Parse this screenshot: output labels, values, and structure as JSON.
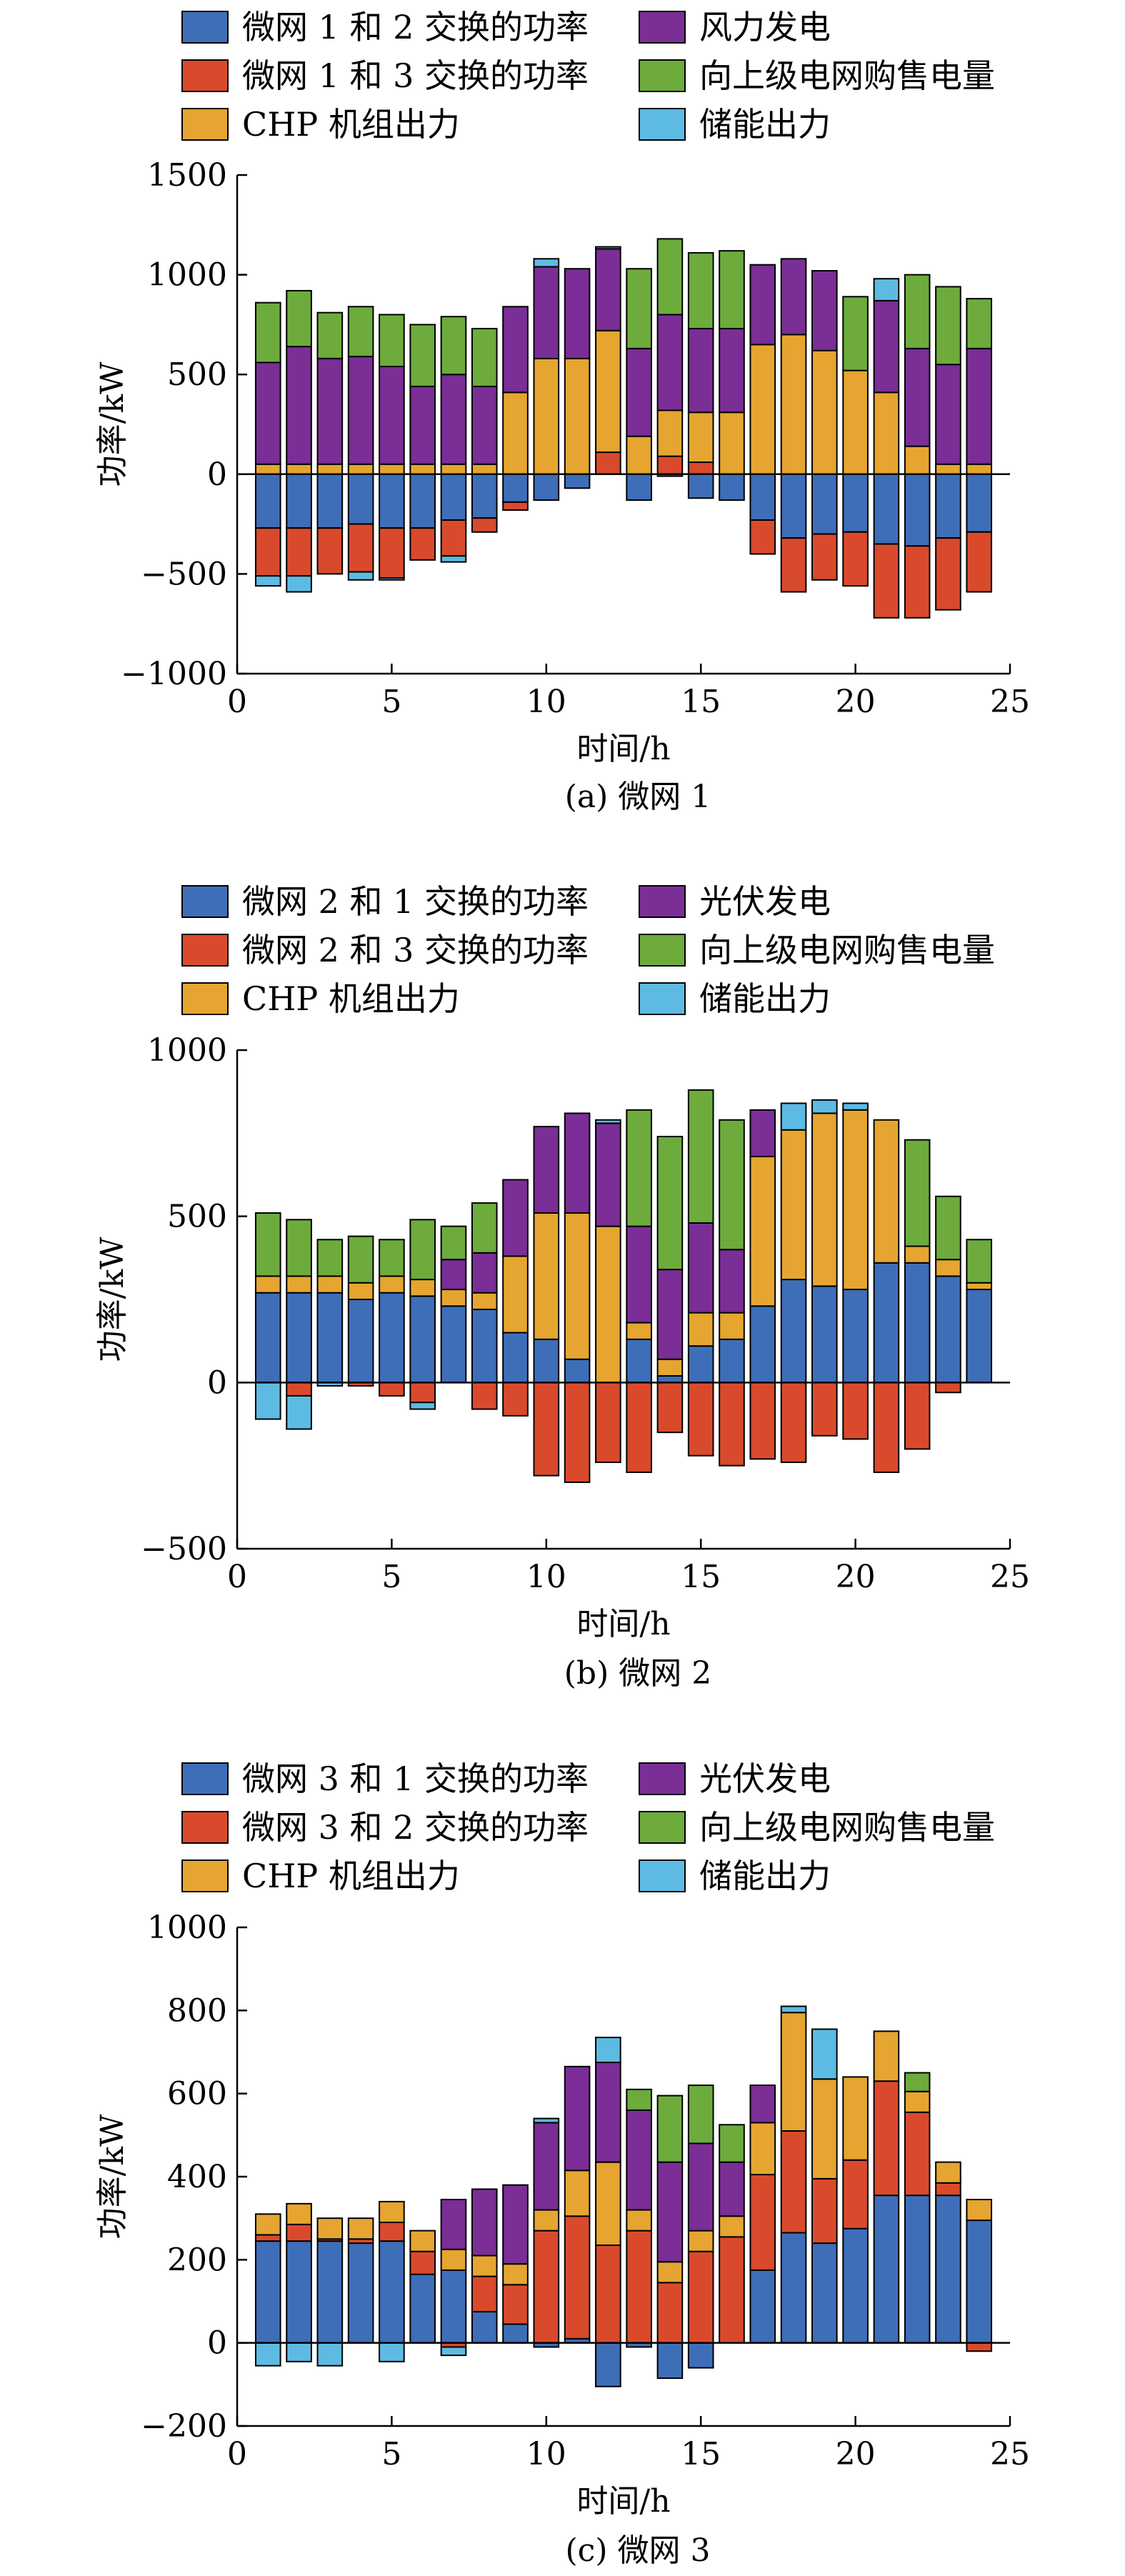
{
  "colors": {
    "blue": "#3E6EB8",
    "red": "#D94A2C",
    "orange": "#E5A530",
    "purple": "#7A2E96",
    "green": "#6CAB3C",
    "cyan": "#5DBBE3"
  },
  "chart_data": [
    {
      "type": "bar",
      "stacked": true,
      "caption": "(a) 微网 1",
      "xlabel": "时间/h",
      "ylabel": "功率/kW",
      "ylim": [
        -1000,
        1500
      ],
      "yticks": [
        "1500",
        "1000",
        "500",
        "0",
        "−500",
        "−1000"
      ],
      "ytick_values": [
        1500,
        1000,
        500,
        0,
        -500,
        -1000
      ],
      "xlim": [
        0,
        25
      ],
      "xticks": [
        "0",
        "5",
        "10",
        "15",
        "20",
        "25"
      ],
      "xtick_values": [
        0,
        5,
        10,
        15,
        20,
        25
      ],
      "x": [
        1,
        2,
        3,
        4,
        5,
        6,
        7,
        8,
        9,
        10,
        11,
        12,
        13,
        14,
        15,
        16,
        17,
        18,
        19,
        20,
        21,
        22,
        23,
        24
      ],
      "legend": [
        "微网 1 和 2 交换的功率",
        "风力发电",
        "微网 1 和 3 交换的功率",
        "向上级电网购售电量",
        "CHP 机组出力",
        "储能出力"
      ],
      "series": [
        {
          "name": "微网 1 和 2 交换的功率",
          "color_key": "blue",
          "values": [
            -270,
            -270,
            -270,
            -250,
            -270,
            -270,
            -230,
            -220,
            -140,
            -130,
            -70,
            0,
            -130,
            -10,
            -120,
            -130,
            -230,
            -320,
            -300,
            -290,
            -350,
            -360,
            -320,
            -290
          ]
        },
        {
          "name": "微网 1 和 3 交换的功率",
          "color_key": "red",
          "values": [
            -240,
            -240,
            -230,
            -240,
            -250,
            -160,
            -180,
            -70,
            -40,
            0,
            0,
            110,
            0,
            90,
            60,
            0,
            -170,
            -270,
            -230,
            -270,
            -370,
            -360,
            -360,
            -300
          ]
        },
        {
          "name": "CHP 机组出力",
          "color_key": "orange",
          "values": [
            50,
            50,
            50,
            50,
            50,
            50,
            50,
            50,
            410,
            580,
            580,
            610,
            190,
            230,
            250,
            310,
            650,
            700,
            620,
            520,
            410,
            140,
            50,
            50
          ]
        },
        {
          "name": "风力发电",
          "color_key": "purple",
          "values": [
            510,
            590,
            530,
            540,
            490,
            390,
            450,
            390,
            430,
            460,
            450,
            410,
            440,
            480,
            420,
            420,
            400,
            380,
            400,
            0,
            460,
            490,
            500,
            580
          ]
        },
        {
          "name": "向上级电网购售电量",
          "color_key": "green",
          "values": [
            300,
            280,
            230,
            250,
            260,
            310,
            290,
            290,
            0,
            0,
            0,
            0,
            400,
            380,
            380,
            390,
            0,
            0,
            0,
            370,
            0,
            370,
            390,
            250
          ]
        },
        {
          "name": "储能出力",
          "color_key": "cyan",
          "values": [
            -50,
            -80,
            0,
            -40,
            -10,
            0,
            -30,
            0,
            0,
            40,
            0,
            10,
            0,
            0,
            0,
            0,
            0,
            0,
            0,
            0,
            110,
            0,
            0,
            0
          ]
        }
      ]
    },
    {
      "type": "bar",
      "stacked": true,
      "caption": "(b) 微网 2",
      "xlabel": "时间/h",
      "ylabel": "功率/kW",
      "ylim": [
        -500,
        1000
      ],
      "yticks": [
        "1000",
        "500",
        "0",
        "−500"
      ],
      "ytick_values": [
        1000,
        500,
        0,
        -500
      ],
      "xlim": [
        0,
        25
      ],
      "xticks": [
        "0",
        "5",
        "10",
        "15",
        "20",
        "25"
      ],
      "xtick_values": [
        0,
        5,
        10,
        15,
        20,
        25
      ],
      "x": [
        1,
        2,
        3,
        4,
        5,
        6,
        7,
        8,
        9,
        10,
        11,
        12,
        13,
        14,
        15,
        16,
        17,
        18,
        19,
        20,
        21,
        22,
        23,
        24
      ],
      "legend": [
        "微网 2 和 1 交换的功率",
        "光伏发电",
        "微网 2 和 3 交换的功率",
        "向上级电网购售电量",
        "CHP 机组出力",
        "储能出力"
      ],
      "series": [
        {
          "name": "微网 2 和 1 交换的功率",
          "color_key": "blue",
          "values": [
            270,
            270,
            270,
            250,
            270,
            260,
            230,
            220,
            150,
            130,
            70,
            0,
            130,
            20,
            110,
            130,
            230,
            310,
            290,
            280,
            360,
            360,
            320,
            280
          ]
        },
        {
          "name": "微网 2 和 3 交换的功率",
          "color_key": "red",
          "values": [
            0,
            -40,
            0,
            -10,
            -40,
            -60,
            0,
            -80,
            -100,
            -280,
            -300,
            -240,
            -270,
            -150,
            -220,
            -250,
            -230,
            -240,
            -160,
            -170,
            -270,
            -200,
            -30,
            0
          ]
        },
        {
          "name": "CHP 机组出力",
          "color_key": "orange",
          "values": [
            50,
            50,
            50,
            50,
            50,
            50,
            50,
            50,
            230,
            380,
            440,
            470,
            50,
            50,
            100,
            80,
            450,
            450,
            520,
            540,
            430,
            50,
            50,
            20
          ]
        },
        {
          "name": "光伏发电",
          "color_key": "purple",
          "values": [
            0,
            0,
            0,
            0,
            0,
            0,
            90,
            120,
            230,
            260,
            300,
            310,
            290,
            270,
            270,
            190,
            140,
            0,
            0,
            0,
            0,
            0,
            0,
            0
          ]
        },
        {
          "name": "向上级电网购售电量",
          "color_key": "green",
          "values": [
            190,
            170,
            110,
            140,
            110,
            180,
            100,
            150,
            0,
            0,
            0,
            0,
            350,
            400,
            400,
            390,
            0,
            0,
            0,
            0,
            0,
            320,
            190,
            130
          ]
        },
        {
          "name": "储能出力",
          "color_key": "cyan",
          "values": [
            -110,
            -100,
            -10,
            0,
            0,
            -20,
            0,
            0,
            0,
            0,
            0,
            10,
            0,
            0,
            0,
            0,
            0,
            80,
            40,
            20,
            0,
            0,
            0,
            0
          ]
        }
      ]
    },
    {
      "type": "bar",
      "stacked": true,
      "caption": "(c) 微网 3",
      "xlabel": "时间/h",
      "ylabel": "功率/kW",
      "ylim": [
        -200,
        1000
      ],
      "yticks": [
        "1000",
        "800",
        "600",
        "400",
        "200",
        "0",
        "−200"
      ],
      "ytick_values": [
        1000,
        800,
        600,
        400,
        200,
        0,
        -200
      ],
      "xlim": [
        0,
        25
      ],
      "xticks": [
        "0",
        "5",
        "10",
        "15",
        "20",
        "25"
      ],
      "xtick_values": [
        0,
        5,
        10,
        15,
        20,
        25
      ],
      "x": [
        1,
        2,
        3,
        4,
        5,
        6,
        7,
        8,
        9,
        10,
        11,
        12,
        13,
        14,
        15,
        16,
        17,
        18,
        19,
        20,
        21,
        22,
        23,
        24
      ],
      "legend": [
        "微网 3 和 1 交换的功率",
        "光伏发电",
        "微网 3 和 2 交换的功率",
        "向上级电网购售电量",
        "CHP 机组出力",
        "储能出力"
      ],
      "series": [
        {
          "name": "微网 3 和 1 交换的功率",
          "color_key": "blue",
          "values": [
            245,
            245,
            245,
            240,
            245,
            165,
            175,
            75,
            45,
            -10,
            10,
            -105,
            -10,
            -85,
            -60,
            0,
            175,
            265,
            240,
            275,
            355,
            355,
            355,
            295
          ]
        },
        {
          "name": "微网 3 和 2 交换的功率",
          "color_key": "red",
          "values": [
            15,
            40,
            5,
            10,
            45,
            55,
            -10,
            85,
            95,
            270,
            295,
            235,
            270,
            145,
            220,
            255,
            230,
            245,
            155,
            165,
            275,
            200,
            30,
            -20
          ]
        },
        {
          "name": "CHP 机组出力",
          "color_key": "orange",
          "values": [
            50,
            50,
            50,
            50,
            50,
            50,
            50,
            50,
            50,
            50,
            110,
            200,
            50,
            50,
            50,
            50,
            125,
            285,
            240,
            200,
            120,
            50,
            50,
            50
          ]
        },
        {
          "name": "光伏发电",
          "color_key": "purple",
          "values": [
            0,
            0,
            0,
            0,
            0,
            0,
            120,
            160,
            190,
            210,
            250,
            240,
            240,
            240,
            210,
            130,
            90,
            0,
            0,
            0,
            0,
            0,
            0,
            0
          ]
        },
        {
          "name": "向上级电网购售电量",
          "color_key": "green",
          "values": [
            0,
            0,
            0,
            0,
            0,
            0,
            0,
            0,
            0,
            0,
            0,
            0,
            50,
            160,
            140,
            90,
            0,
            0,
            0,
            0,
            0,
            45,
            0,
            0
          ]
        },
        {
          "name": "储能出力",
          "color_key": "cyan",
          "values": [
            -55,
            -45,
            -55,
            0,
            -45,
            0,
            -20,
            0,
            0,
            10,
            0,
            60,
            0,
            0,
            0,
            0,
            0,
            15,
            120,
            0,
            0,
            0,
            0,
            0
          ]
        }
      ]
    }
  ]
}
